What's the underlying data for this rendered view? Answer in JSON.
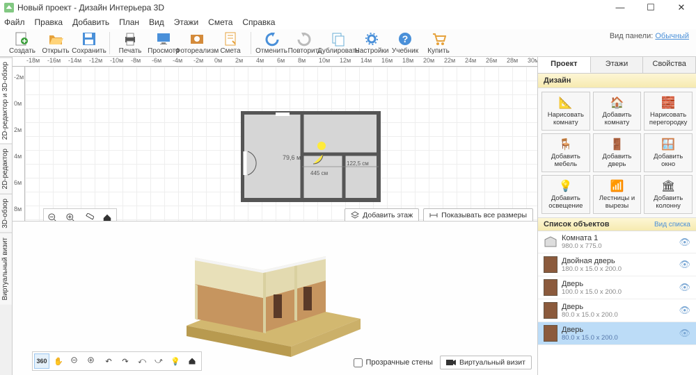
{
  "window": {
    "title": "Новый проект - Дизайн Интерьера 3D"
  },
  "menubar": [
    "Файл",
    "Правка",
    "Добавить",
    "План",
    "Вид",
    "Этажи",
    "Смета",
    "Справка"
  ],
  "view_panel": {
    "label": "Вид панели:",
    "link": "Обычный"
  },
  "toolbar": [
    {
      "label": "Создать",
      "icon": "new",
      "color": "#3b9e3b"
    },
    {
      "label": "Открыть",
      "icon": "open",
      "color": "#e6a23c"
    },
    {
      "label": "Сохранить",
      "icon": "save",
      "color": "#4a90d9"
    },
    {
      "sep": true
    },
    {
      "label": "Печать",
      "icon": "print",
      "color": "#555"
    },
    {
      "label": "Просмотр",
      "icon": "monitor",
      "color": "#4a90d9"
    },
    {
      "label": "Фотореализм",
      "icon": "photo",
      "color": "#d48b3b"
    },
    {
      "label": "Смета",
      "icon": "notes",
      "color": "#e6a23c"
    },
    {
      "sep": true
    },
    {
      "label": "Отменить",
      "icon": "undo",
      "color": "#4a90d9"
    },
    {
      "label": "Повторить",
      "icon": "redo",
      "color": "#bbb"
    },
    {
      "label": "Дублировать",
      "icon": "dup",
      "color": "#6aaed6"
    },
    {
      "label": "Настройки",
      "icon": "gear",
      "color": "#4a90d9"
    },
    {
      "label": "Учебник",
      "icon": "help",
      "color": "#4a90d9"
    },
    {
      "label": "Купить",
      "icon": "cart",
      "color": "#e6a23c"
    }
  ],
  "left_tabs": [
    "2D-редактор и 3D-обзор",
    "2D-редактор",
    "3D-обзор",
    "Виртуальный визит"
  ],
  "ruler_center": "0м",
  "plan_dims": {
    "w": "445 см",
    "closet": "122,5 см",
    "label": "79,6 м²"
  },
  "plan_btns": {
    "add_floor": "Добавить этаж",
    "show_dims": "Показывать все размеры"
  },
  "design": {
    "hdr": "Дизайн",
    "items": [
      {
        "t1": "Нарисовать",
        "t2": "комнату"
      },
      {
        "t1": "Добавить",
        "t2": "комнату"
      },
      {
        "t1": "Нарисовать",
        "t2": "перегородку"
      },
      {
        "t1": "Добавить",
        "t2": "мебель"
      },
      {
        "t1": "Добавить",
        "t2": "дверь"
      },
      {
        "t1": "Добавить",
        "t2": "окно"
      },
      {
        "t1": "Добавить",
        "t2": "освещение"
      },
      {
        "t1": "Лестницы и",
        "t2": "вырезы"
      },
      {
        "t1": "Добавить",
        "t2": "колонну"
      }
    ]
  },
  "objlist": {
    "hdr": "Список объектов",
    "view": "Вид списка",
    "rows": [
      {
        "name": "Комната 1",
        "dims": "980.0 x 775.0",
        "room": true
      },
      {
        "name": "Двойная дверь",
        "dims": "180.0 x 15.0 x 200.0"
      },
      {
        "name": "Дверь",
        "dims": "100.0 x 15.0 x 200.0"
      },
      {
        "name": "Дверь",
        "dims": "80.0 x 15.0 x 200.0"
      },
      {
        "name": "Дверь",
        "dims": "80.0 x 15.0 x 200.0",
        "sel": true
      }
    ]
  },
  "rtabs": [
    "Проект",
    "Этажи",
    "Свойства"
  ],
  "d3": {
    "transparent": "Прозрачные стены",
    "virtual": "Виртуальный визит"
  }
}
